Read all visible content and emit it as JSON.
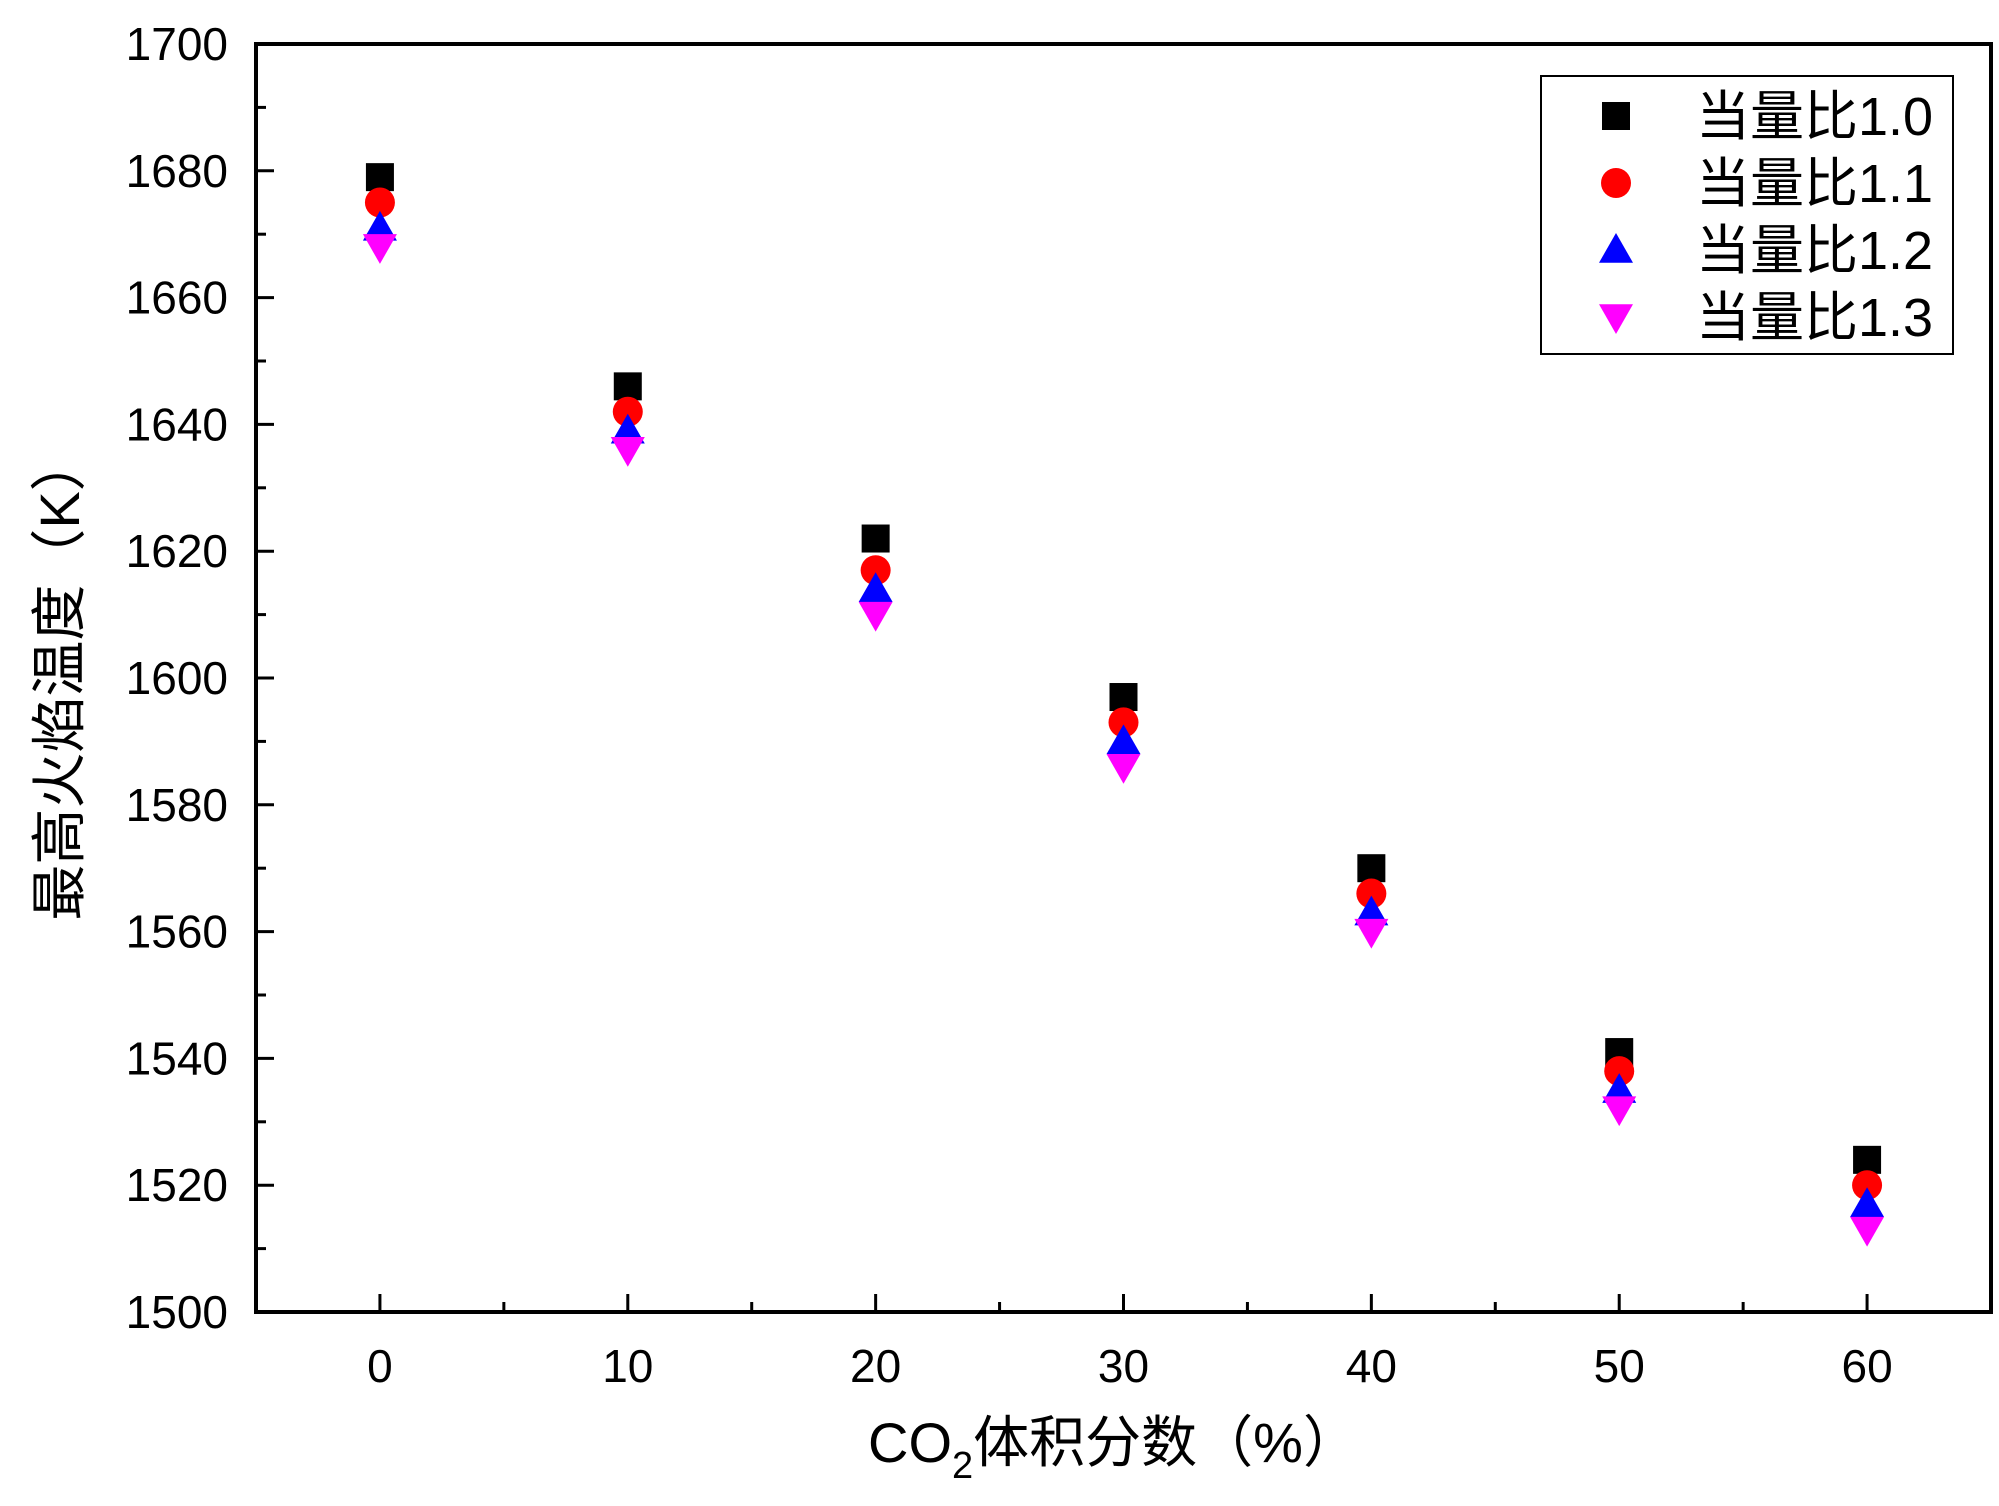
{
  "chart_data": {
    "type": "scatter",
    "title": "",
    "xlabel": {
      "main": "CO",
      "subscript": "2",
      "rest": "体积分数（%）"
    },
    "ylabel": "最高火焰温度（K）",
    "xlim": [
      -5,
      65
    ],
    "ylim": [
      1500,
      1700
    ],
    "xticks": [
      0,
      10,
      20,
      30,
      40,
      50,
      60
    ],
    "yticks": [
      1500,
      1520,
      1540,
      1560,
      1580,
      1600,
      1620,
      1640,
      1660,
      1680,
      1700
    ],
    "grid": false,
    "legend_position": "top-right",
    "x": [
      0,
      10,
      20,
      30,
      40,
      50,
      60
    ],
    "series": [
      {
        "name": "当量比1.0",
        "marker": "square",
        "color": "#000000",
        "values": [
          1679,
          1646,
          1622,
          1597,
          1570,
          1541,
          1524
        ]
      },
      {
        "name": "当量比1.1",
        "marker": "circle",
        "color": "#ff0000",
        "values": [
          1675,
          1642,
          1617,
          1593,
          1566,
          1538,
          1520
        ]
      },
      {
        "name": "当量比1.2",
        "marker": "triangle-up",
        "color": "#0000ff",
        "values": [
          1671,
          1639,
          1614,
          1590,
          1563,
          1535,
          1517
        ]
      },
      {
        "name": "当量比1.3",
        "marker": "triangle-down",
        "color": "#ff00ff",
        "values": [
          1668,
          1636,
          1610,
          1586,
          1560,
          1532,
          1513
        ]
      }
    ]
  }
}
